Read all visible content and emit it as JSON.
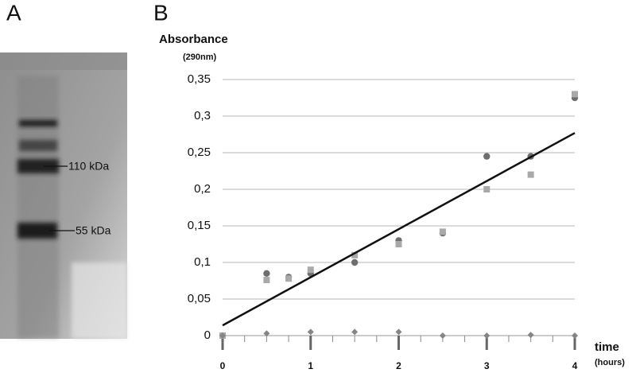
{
  "panel_a": {
    "label": "A",
    "bands": [
      "110 kDa",
      "55 kDa"
    ]
  },
  "chart_data": {
    "type": "scatter",
    "panel_label": "B",
    "y_label": "Absorbance",
    "y_unit": "(290nm)",
    "x_label": "time",
    "x_unit": "(hours)",
    "xlim": [
      0,
      4
    ],
    "ylim": [
      0,
      0.35
    ],
    "xticks": [
      0,
      1,
      2,
      3,
      4
    ],
    "xminorticks": [
      0.25,
      0.5,
      0.75,
      1.25,
      1.5,
      1.75,
      2.25,
      2.5,
      2.75,
      3.25,
      3.5,
      3.75
    ],
    "yticks": [
      0,
      {
        "value": 0.05,
        "label": "0,05"
      },
      {
        "value": 0.1,
        "label": "0,1"
      },
      {
        "value": 0.15,
        "label": "0,15"
      },
      {
        "value": 0.2,
        "label": "0,2"
      },
      {
        "value": 0.25,
        "label": "0,25"
      },
      {
        "value": 0.3,
        "label": "0,3"
      },
      {
        "value": 0.35,
        "label": "0,35"
      }
    ],
    "grid": true,
    "series": [
      {
        "mark": "circle",
        "color": "#6e6e6e",
        "x": [
          0,
          0.5,
          0.75,
          1,
          1.5,
          2,
          2.5,
          3,
          3.5,
          4
        ],
        "values": [
          0,
          0.085,
          0.08,
          0.085,
          0.1,
          0.13,
          0.14,
          0.245,
          0.245,
          0.325
        ]
      },
      {
        "mark": "square",
        "color": "#a9a9a9",
        "x": [
          0,
          0.5,
          0.75,
          1,
          1.5,
          2,
          2.5,
          3,
          3.5,
          4
        ],
        "values": [
          0,
          0.076,
          0.078,
          0.09,
          0.11,
          0.125,
          0.142,
          0.2,
          0.22,
          0.33
        ]
      },
      {
        "mark": "diamond",
        "color": "#858585",
        "x": [
          0,
          0.5,
          1,
          1.5,
          2,
          2.5,
          3,
          3.5,
          4
        ],
        "values": [
          0,
          0.003,
          0.005,
          0.005,
          0.005,
          0,
          0,
          0.001,
          0
        ]
      },
      {
        "mark": "line",
        "color": "#111111",
        "x": [
          0,
          4
        ],
        "values": [
          0.014,
          0.277
        ]
      }
    ]
  }
}
